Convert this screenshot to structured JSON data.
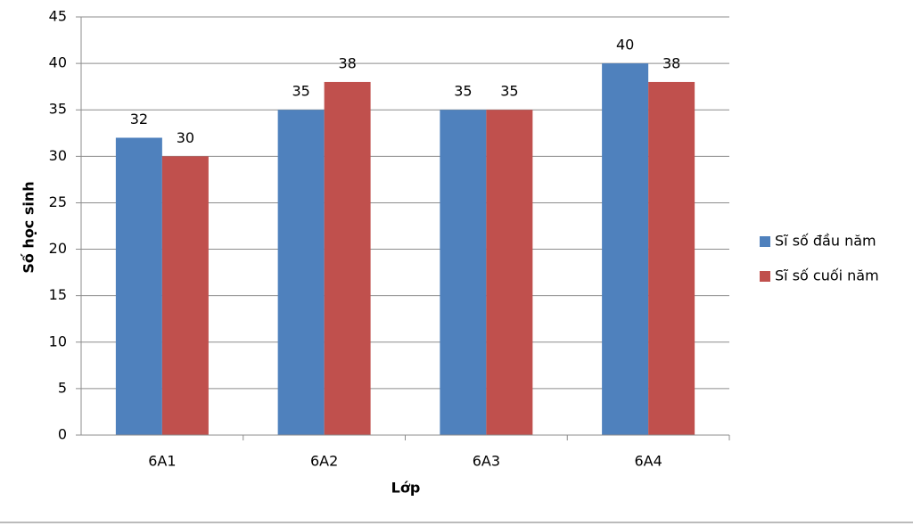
{
  "chart_data": {
    "type": "bar",
    "x_label": "Lớp",
    "y_label": "Số học sinh",
    "categories": [
      "6A1",
      "6A2",
      "6A3",
      "6A4"
    ],
    "series": [
      {
        "name": "Sĩ số đầu năm",
        "color": "#4f81bd",
        "values": [
          32,
          35,
          35,
          40
        ]
      },
      {
        "name": "Sĩ số cuối năm",
        "color": "#c0504d",
        "values": [
          30,
          38,
          35,
          38
        ]
      }
    ],
    "ylim": [
      0,
      45
    ],
    "yticks": [
      0,
      5,
      10,
      15,
      20,
      25,
      30,
      35,
      40,
      45
    ],
    "grid": true,
    "legend": "right",
    "data_labels": true
  }
}
